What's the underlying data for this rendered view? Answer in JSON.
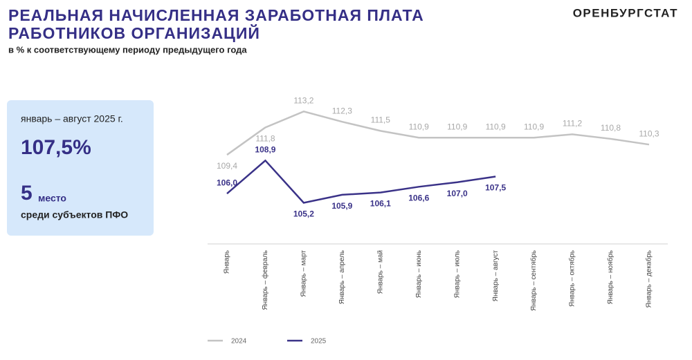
{
  "header": {
    "title_lines": [
      "РЕАЛЬНАЯ НАЧИСЛЕННАЯ ЗАРАБОТНАЯ ПЛАТА",
      "РАБОТНИКОВ ОРГАНИЗАЦИЙ"
    ],
    "subtitle": "в % к соответствующему периоду предыдущего года",
    "brand": "ОРЕНБУРГСТАТ"
  },
  "panel": {
    "period": "январь – август 2025 г.",
    "value": "107,5%",
    "rank": "5",
    "rank_word": "место",
    "rank_note": "среди субъектов ПФО"
  },
  "chart_data": {
    "type": "line",
    "categories": [
      "Январь",
      "Январь – февраль",
      "Январь – март",
      "Январь – апрель",
      "Январь – май",
      "Январь – июнь",
      "Январь – июль",
      "Январь – август",
      "Январь – сентябрь",
      "Январь – октябрь",
      "Январь – ноябрь",
      "Январь – декабрь"
    ],
    "ylim": [
      102.2,
      115.7
    ],
    "series": [
      {
        "name": "2024",
        "color": "#c3c3c3",
        "values": [
          109.4,
          111.8,
          113.2,
          112.3,
          111.5,
          110.9,
          110.9,
          110.9,
          110.9,
          111.2,
          110.8,
          110.3
        ],
        "value_labels": [
          "109,4",
          "111,8",
          "113,2",
          "112,3",
          "111,5",
          "110,9",
          "110,9",
          "110,9",
          "110,9",
          "111,2",
          "110,8",
          "110,3"
        ]
      },
      {
        "name": "2025",
        "color": "#3a3288",
        "values": [
          106.0,
          108.9,
          105.2,
          105.9,
          106.1,
          106.6,
          107.0,
          107.5,
          null,
          null,
          null,
          null
        ],
        "value_labels": [
          "106,0",
          "108,9",
          "105,2",
          "105,9",
          "106,1",
          "106,6",
          "107,0",
          "107,5",
          null,
          null,
          null,
          null
        ]
      }
    ]
  }
}
